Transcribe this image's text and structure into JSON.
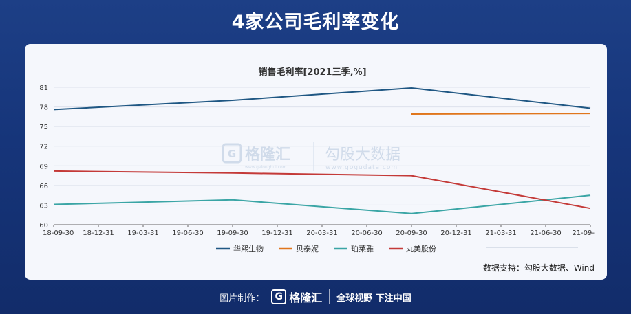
{
  "page_title": "4家公司毛利率变化",
  "footer": {
    "credit_label": "图片制作：",
    "brand_mark": "G",
    "brand_name": "格隆汇",
    "slogan": "全球视野 下注中国"
  },
  "watermark": {
    "brand": "格隆汇",
    "brand_url": "www.gelonghui.com",
    "name": "勾股大数据",
    "url": "www.gogudata.com"
  },
  "source": "数据支持：勾股大数据、Wind",
  "colors": {
    "华熙生物": "#1f5783",
    "贝泰妮": "#e0761c",
    "珀莱雅": "#3aa5a5",
    "丸美股份": "#c43a38"
  },
  "chart_data": {
    "type": "line",
    "title": "销售毛利率[2021三季,%]",
    "xlabel": "",
    "ylabel": "",
    "ylim": [
      60,
      81
    ],
    "yticks": [
      60,
      63,
      66,
      69,
      72,
      75,
      78,
      81
    ],
    "categories": [
      "18-09-30",
      "18-12-31",
      "19-03-31",
      "19-06-30",
      "19-09-30",
      "19-12-31",
      "20-03-31",
      "20-06-30",
      "20-09-30",
      "20-12-31",
      "21-03-31",
      "21-06-30",
      "21-09-"
    ],
    "grid": true,
    "legend": "bottom",
    "series": [
      {
        "name": "华熙生物",
        "points": [
          [
            0,
            77.6
          ],
          [
            4,
            79.0
          ],
          [
            8,
            80.9
          ],
          [
            12,
            77.8
          ]
        ]
      },
      {
        "name": "贝泰妮",
        "points": [
          [
            8,
            76.9
          ],
          [
            12,
            77.0
          ]
        ]
      },
      {
        "name": "珀莱雅",
        "points": [
          [
            0,
            63.1
          ],
          [
            4,
            63.8
          ],
          [
            8,
            61.7
          ],
          [
            12,
            64.5
          ]
        ]
      },
      {
        "name": "丸美股份",
        "points": [
          [
            0,
            68.2
          ],
          [
            4,
            67.9
          ],
          [
            8,
            67.5
          ],
          [
            12,
            62.5
          ]
        ]
      }
    ]
  }
}
